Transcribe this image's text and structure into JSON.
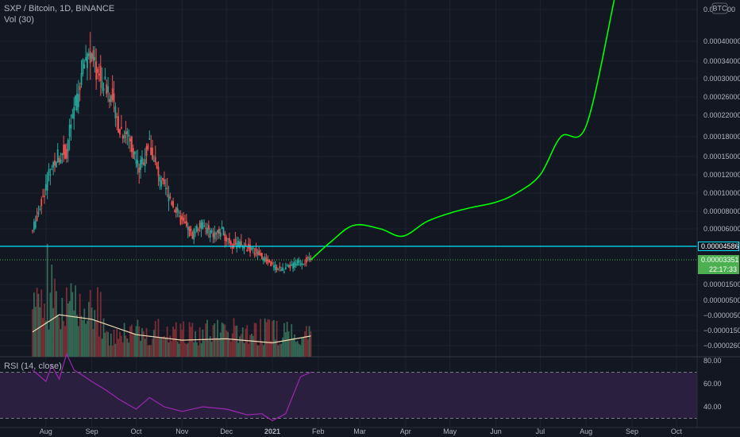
{
  "header": {
    "symbol_title": "SXP / Bitcoin, 1D, BINANCE",
    "volume_label": "Vol (30)"
  },
  "rsi_panel": {
    "label": "RSI (14, close)",
    "ticks": [
      "80.00",
      "60.00",
      "40.00"
    ]
  },
  "currency_badge": "BTC",
  "price_axis_ticks": [
    "0.00040000",
    "0.00034000",
    "0.00030000",
    "0.00026000",
    "0.00022000",
    "0.00018000",
    "0.00015000",
    "0.00012000",
    "0.00010000",
    "0.00008000",
    "0.00006000",
    "0.00001500",
    "0.00000500",
    "−0.00000500",
    "−0.00001500",
    "−0.00002600"
  ],
  "price_axis_top_tick": "0.00",
  "price_axis_top_tick_suffix": "00",
  "x_axis_labels": [
    "Aug",
    "Sep",
    "Oct",
    "Nov",
    "Dec",
    "2021",
    "Feb",
    "Mar",
    "Apr",
    "May",
    "Jun",
    "Jul",
    "Aug",
    "Sep",
    "Oct"
  ],
  "horizontal_line_tag": "0.00004586",
  "last_price_tag": "0.00003351",
  "countdown_tag": "22:17:33",
  "colors": {
    "background": "#131722",
    "up_candle": "#26a69a",
    "down_candle": "#ef5350",
    "up_volume": "#336854",
    "down_volume": "#7a2d34",
    "volume_ma": "#f0d9b5",
    "projection": "#00ff00",
    "horizontal_line": "#00e5ff",
    "last_price": "#4caf50",
    "rsi_line": "#9c27b0",
    "rsi_band": "#2a1f3f"
  },
  "chart_data": [
    {
      "type": "line",
      "title": "SXP / Bitcoin, 1D, BINANCE",
      "x_unit": "date",
      "x_range": [
        "2020-07-01",
        "2021-10-15"
      ],
      "price_series": {
        "name": "SXP / Bitcoin",
        "x": [
          "2020-07-23",
          "2020-08-01",
          "2020-08-08",
          "2020-08-15",
          "2020-08-22",
          "2020-08-29",
          "2020-09-05",
          "2020-09-12",
          "2020-09-19",
          "2020-09-26",
          "2020-10-03",
          "2020-10-10",
          "2020-10-17",
          "2020-10-24",
          "2020-10-31",
          "2020-11-07",
          "2020-11-14",
          "2020-11-21",
          "2020-11-28",
          "2020-12-05",
          "2020-12-12",
          "2020-12-19",
          "2020-12-26",
          "2021-01-02",
          "2021-01-09",
          "2021-01-16",
          "2021-01-23",
          "2021-01-27"
        ],
        "y": [
          5.8e-05,
          0.00011,
          0.00015,
          0.00016,
          0.00026,
          0.00037,
          0.00031,
          0.00028,
          0.0002,
          0.00018,
          0.00013,
          0.00017,
          0.00011,
          9.5e-05,
          7e-05,
          5.5e-05,
          6.5e-05,
          5.5e-05,
          5.8e-05,
          4.8e-05,
          4.6e-05,
          4.2e-05,
          3.5e-05,
          2.8e-05,
          2.6e-05,
          3e-05,
          3.3e-05,
          3.35e-05
        ]
      },
      "projection_series": {
        "x": [
          "2021-01-27",
          "2021-02-10",
          "2021-02-25",
          "2021-03-15",
          "2021-03-30",
          "2021-04-15",
          "2021-05-01",
          "2021-05-15",
          "2021-06-01",
          "2021-06-15",
          "2021-07-01",
          "2021-07-15",
          "2021-08-01",
          "2021-08-20"
        ],
        "y": [
          3.35e-05,
          5e-05,
          6.4e-05,
          6e-05,
          5.4e-05,
          6.8e-05,
          7.8e-05,
          8.4e-05,
          9e-05,
          0.0001,
          0.00012,
          0.00018,
          0.0002,
          0.00044
        ]
      },
      "horizontal_line": 4.586e-05,
      "last_price": 3.351e-05,
      "volume_ma": {
        "name": "Vol (30)",
        "x": [
          "2020-07-23",
          "2020-08-10",
          "2020-09-01",
          "2020-10-01",
          "2020-11-01",
          "2020-12-01",
          "2021-01-01",
          "2021-01-27"
        ],
        "y": [
          -1.6e-05,
          -4.5e-06,
          -7.5e-06,
          -1.8e-05,
          -2.2e-05,
          -2.1e-05,
          -2.4e-05,
          -1.9e-05
        ]
      }
    },
    {
      "type": "line",
      "title": "RSI (14, close)",
      "ylim": [
        25,
        90
      ],
      "upper_band": 70,
      "lower_band": 30,
      "series": [
        {
          "x": [
            "2020-07-23",
            "2020-08-01",
            "2020-08-05",
            "2020-08-10",
            "2020-08-15",
            "2020-08-20",
            "2020-08-25",
            "2020-09-01",
            "2020-09-10",
            "2020-09-20",
            "2020-10-01",
            "2020-10-10",
            "2020-10-20",
            "2020-11-01",
            "2020-11-15",
            "2020-12-01",
            "2020-12-15",
            "2020-12-25",
            "2021-01-01",
            "2021-01-10",
            "2021-01-20",
            "2021-01-27"
          ],
          "y": [
            72,
            62,
            76,
            64,
            86,
            72,
            68,
            62,
            55,
            46,
            38,
            48,
            40,
            36,
            40,
            38,
            33,
            34,
            28,
            34,
            66,
            70
          ]
        }
      ]
    }
  ]
}
